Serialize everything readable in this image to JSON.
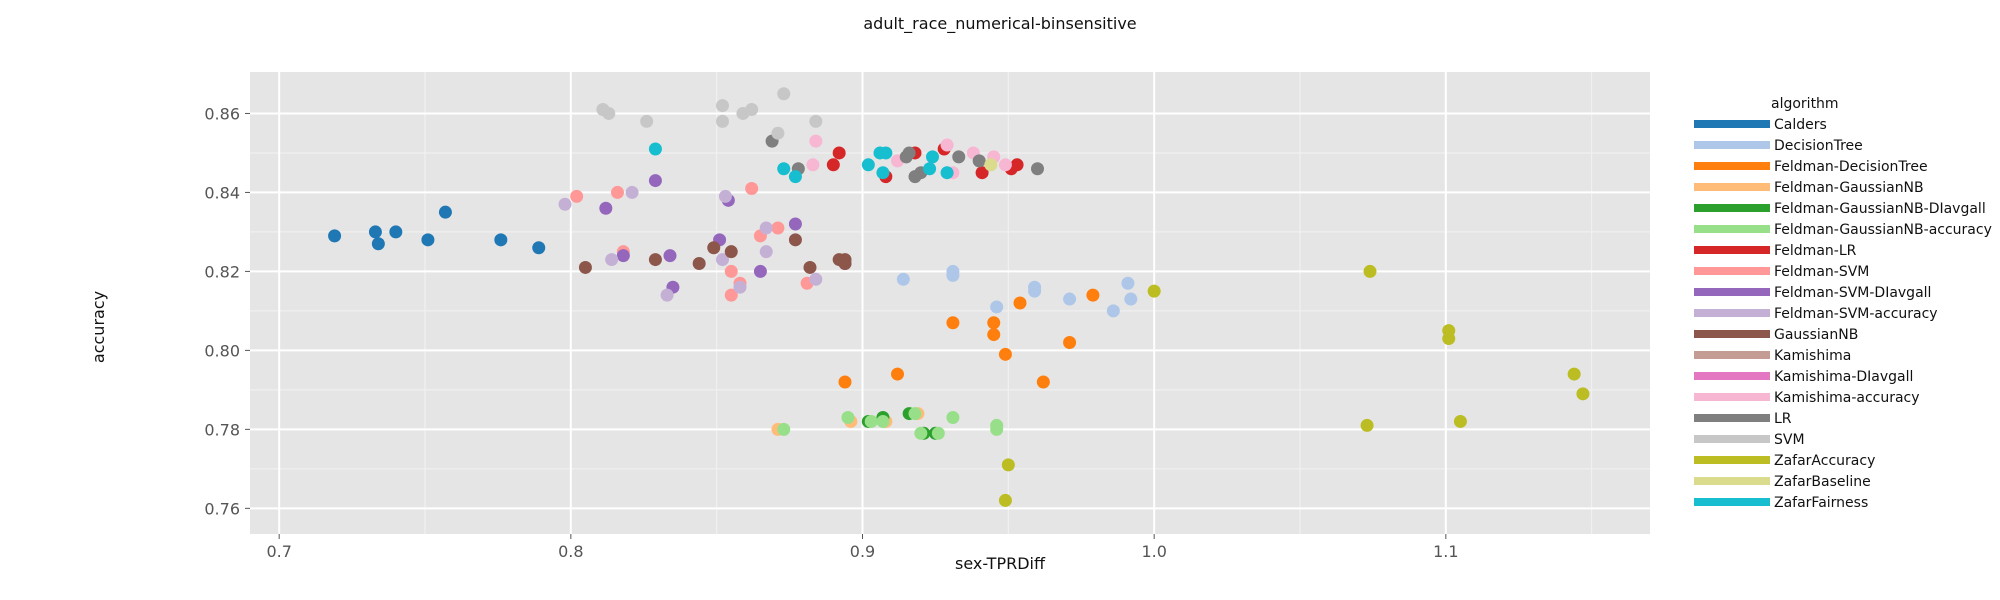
{
  "chart_data": {
    "type": "scatter",
    "title": "adult_race_numerical-binsensitive",
    "xlabel": "sex-TPRDiff",
    "ylabel": "accuracy",
    "xlim": [
      0.69,
      1.17
    ],
    "ylim": [
      0.7535,
      0.8705
    ],
    "x_ticks": [
      0.7,
      0.8,
      0.9,
      1.0,
      1.1
    ],
    "x_tick_labels": [
      "0.7",
      "0.8",
      "0.9",
      "1.0",
      "1.1"
    ],
    "y_ticks": [
      0.76,
      0.78,
      0.8,
      0.82,
      0.84,
      0.86
    ],
    "y_tick_labels": [
      "0.76",
      "0.78",
      "0.80",
      "0.82",
      "0.84",
      "0.86"
    ],
    "grid": true,
    "legend_title": "algorithm",
    "legend_position": "right",
    "series": [
      {
        "name": "Calders",
        "color": "#1f77b4",
        "points": [
          [
            0.719,
            0.829
          ],
          [
            0.733,
            0.83
          ],
          [
            0.734,
            0.827
          ],
          [
            0.74,
            0.83
          ],
          [
            0.751,
            0.828
          ],
          [
            0.757,
            0.835
          ],
          [
            0.776,
            0.828
          ],
          [
            0.789,
            0.826
          ]
        ]
      },
      {
        "name": "DecisionTree",
        "color": "#aec7e8",
        "points": [
          [
            0.914,
            0.818
          ],
          [
            0.931,
            0.82
          ],
          [
            0.931,
            0.819
          ],
          [
            0.946,
            0.811
          ],
          [
            0.959,
            0.816
          ],
          [
            0.959,
            0.815
          ],
          [
            0.971,
            0.813
          ],
          [
            0.986,
            0.81
          ],
          [
            0.991,
            0.817
          ],
          [
            0.992,
            0.813
          ]
        ]
      },
      {
        "name": "Feldman-DecisionTree",
        "color": "#ff7f0e",
        "points": [
          [
            0.894,
            0.792
          ],
          [
            0.912,
            0.794
          ],
          [
            0.931,
            0.807
          ],
          [
            0.945,
            0.807
          ],
          [
            0.945,
            0.804
          ],
          [
            0.949,
            0.799
          ],
          [
            0.954,
            0.812
          ],
          [
            0.962,
            0.792
          ],
          [
            0.971,
            0.802
          ],
          [
            0.979,
            0.814
          ]
        ]
      },
      {
        "name": "Feldman-GaussianNB",
        "color": "#ffbb78",
        "points": [
          [
            0.871,
            0.78
          ],
          [
            0.896,
            0.782
          ],
          [
            0.908,
            0.782
          ],
          [
            0.919,
            0.784
          ]
        ]
      },
      {
        "name": "Feldman-GaussianNB-DIavgall",
        "color": "#2ca02c",
        "points": [
          [
            0.902,
            0.782
          ],
          [
            0.907,
            0.783
          ],
          [
            0.916,
            0.784
          ],
          [
            0.921,
            0.779
          ],
          [
            0.925,
            0.779
          ]
        ]
      },
      {
        "name": "Feldman-GaussianNB-accuracy",
        "color": "#98df8a",
        "points": [
          [
            0.873,
            0.78
          ],
          [
            0.895,
            0.783
          ],
          [
            0.903,
            0.782
          ],
          [
            0.907,
            0.782
          ],
          [
            0.918,
            0.784
          ],
          [
            0.92,
            0.779
          ],
          [
            0.926,
            0.779
          ],
          [
            0.931,
            0.783
          ],
          [
            0.946,
            0.781
          ],
          [
            0.946,
            0.78
          ]
        ]
      },
      {
        "name": "Feldman-LR",
        "color": "#d62728",
        "points": [
          [
            0.89,
            0.847
          ],
          [
            0.892,
            0.85
          ],
          [
            0.908,
            0.844
          ],
          [
            0.918,
            0.85
          ],
          [
            0.928,
            0.851
          ],
          [
            0.941,
            0.845
          ],
          [
            0.951,
            0.846
          ],
          [
            0.953,
            0.847
          ]
        ]
      },
      {
        "name": "Feldman-SVM",
        "color": "#ff9896",
        "points": [
          [
            0.802,
            0.839
          ],
          [
            0.816,
            0.84
          ],
          [
            0.818,
            0.825
          ],
          [
            0.855,
            0.814
          ],
          [
            0.855,
            0.82
          ],
          [
            0.858,
            0.817
          ],
          [
            0.862,
            0.841
          ],
          [
            0.865,
            0.829
          ],
          [
            0.871,
            0.831
          ],
          [
            0.881,
            0.817
          ]
        ]
      },
      {
        "name": "Feldman-SVM-DIavgall",
        "color": "#9467bd",
        "points": [
          [
            0.812,
            0.836
          ],
          [
            0.818,
            0.824
          ],
          [
            0.829,
            0.843
          ],
          [
            0.834,
            0.824
          ],
          [
            0.835,
            0.816
          ],
          [
            0.851,
            0.828
          ],
          [
            0.854,
            0.838
          ],
          [
            0.865,
            0.82
          ],
          [
            0.877,
            0.832
          ],
          [
            0.894,
            0.822
          ]
        ]
      },
      {
        "name": "Feldman-SVM-accuracy",
        "color": "#c5b0d5",
        "points": [
          [
            0.798,
            0.837
          ],
          [
            0.814,
            0.823
          ],
          [
            0.821,
            0.84
          ],
          [
            0.833,
            0.814
          ],
          [
            0.852,
            0.823
          ],
          [
            0.853,
            0.839
          ],
          [
            0.858,
            0.816
          ],
          [
            0.867,
            0.831
          ],
          [
            0.867,
            0.825
          ],
          [
            0.884,
            0.818
          ]
        ]
      },
      {
        "name": "GaussianNB",
        "color": "#8c564b",
        "points": [
          [
            0.805,
            0.821
          ],
          [
            0.829,
            0.823
          ],
          [
            0.844,
            0.822
          ],
          [
            0.849,
            0.826
          ],
          [
            0.855,
            0.825
          ],
          [
            0.877,
            0.828
          ],
          [
            0.882,
            0.821
          ],
          [
            0.892,
            0.823
          ],
          [
            0.894,
            0.823
          ],
          [
            0.894,
            0.822
          ]
        ]
      },
      {
        "name": "Kamishima",
        "color": "#c49c94",
        "points": []
      },
      {
        "name": "Kamishima-DIavgall",
        "color": "#e377c2",
        "points": []
      },
      {
        "name": "Kamishima-accuracy",
        "color": "#f7b6d2",
        "points": [
          [
            0.883,
            0.847
          ],
          [
            0.884,
            0.853
          ],
          [
            0.912,
            0.848
          ],
          [
            0.929,
            0.852
          ],
          [
            0.931,
            0.845
          ],
          [
            0.938,
            0.85
          ],
          [
            0.945,
            0.849
          ],
          [
            0.949,
            0.847
          ]
        ]
      },
      {
        "name": "LR",
        "color": "#7f7f7f",
        "points": [
          [
            0.869,
            0.853
          ],
          [
            0.878,
            0.846
          ],
          [
            0.915,
            0.849
          ],
          [
            0.916,
            0.85
          ],
          [
            0.918,
            0.844
          ],
          [
            0.92,
            0.845
          ],
          [
            0.933,
            0.849
          ],
          [
            0.94,
            0.848
          ],
          [
            0.96,
            0.846
          ]
        ]
      },
      {
        "name": "SVM",
        "color": "#c7c7c7",
        "points": [
          [
            0.811,
            0.861
          ],
          [
            0.813,
            0.86
          ],
          [
            0.826,
            0.858
          ],
          [
            0.852,
            0.858
          ],
          [
            0.852,
            0.862
          ],
          [
            0.859,
            0.86
          ],
          [
            0.862,
            0.861
          ],
          [
            0.871,
            0.855
          ],
          [
            0.873,
            0.865
          ],
          [
            0.884,
            0.858
          ]
        ]
      },
      {
        "name": "ZafarAccuracy",
        "color": "#bcbd22",
        "points": [
          [
            0.949,
            0.762
          ],
          [
            0.95,
            0.771
          ],
          [
            1.073,
            0.781
          ],
          [
            1.074,
            0.82
          ],
          [
            1.101,
            0.805
          ],
          [
            1.101,
            0.803
          ],
          [
            1.105,
            0.782
          ],
          [
            1.144,
            0.794
          ],
          [
            1.147,
            0.789
          ],
          [
            1.0,
            0.815
          ]
        ]
      },
      {
        "name": "ZafarBaseline",
        "color": "#dbdb8d",
        "points": [
          [
            0.944,
            0.847
          ]
        ]
      },
      {
        "name": "ZafarFairness",
        "color": "#17becf",
        "points": [
          [
            0.829,
            0.851
          ],
          [
            0.873,
            0.846
          ],
          [
            0.877,
            0.844
          ],
          [
            0.902,
            0.847
          ],
          [
            0.906,
            0.85
          ],
          [
            0.907,
            0.845
          ],
          [
            0.908,
            0.85
          ],
          [
            0.923,
            0.846
          ],
          [
            0.924,
            0.849
          ],
          [
            0.929,
            0.845
          ]
        ]
      }
    ]
  }
}
